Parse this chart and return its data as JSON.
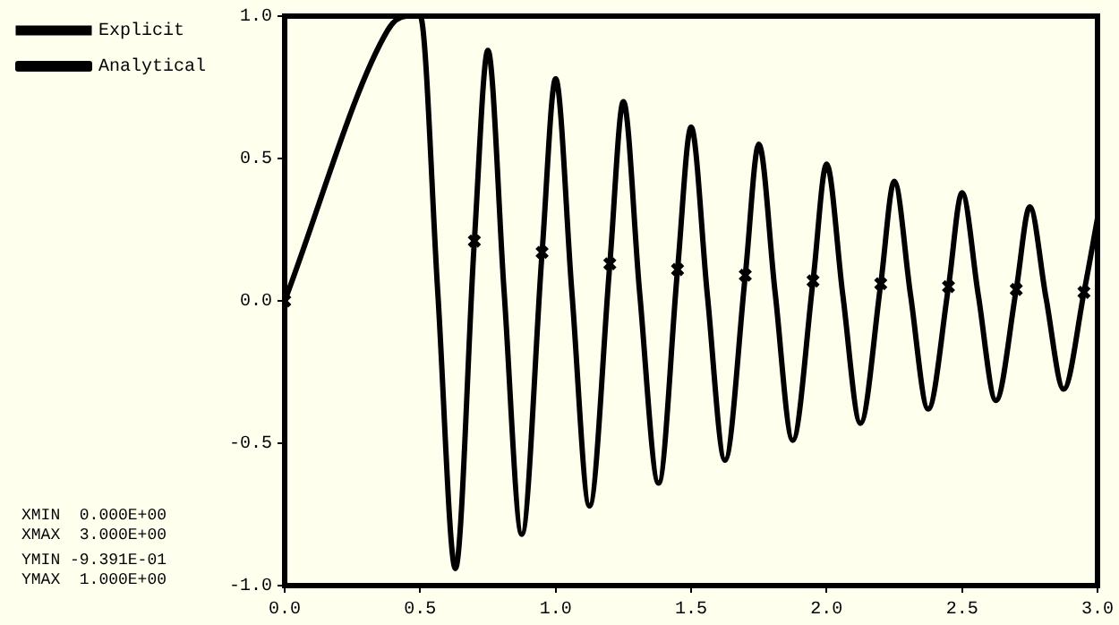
{
  "chart_data": {
    "type": "line",
    "xlim": [
      0,
      3
    ],
    "ylim": [
      -1,
      1
    ],
    "xticks": [
      {
        "value": 0,
        "label": "0.0"
      },
      {
        "value": 0.5,
        "label": "0.5"
      },
      {
        "value": 1,
        "label": "1.0"
      },
      {
        "value": 1.5,
        "label": "1.5"
      },
      {
        "value": 2,
        "label": "2.0"
      },
      {
        "value": 2.5,
        "label": "2.5"
      },
      {
        "value": 3,
        "label": "3.0"
      }
    ],
    "yticks": [
      {
        "value": -1,
        "label": "-1.0"
      },
      {
        "value": -0.5,
        "label": "-0.5"
      },
      {
        "value": 0,
        "label": "0.0"
      },
      {
        "value": 0.5,
        "label": "0.5"
      },
      {
        "value": 1,
        "label": "1.0"
      }
    ],
    "grid": false,
    "legend": "top left",
    "line_style": "solid",
    "series": [
      {
        "name": "Explicit",
        "type": "scatter",
        "marker": "cross",
        "color": "#000000",
        "x": [
          0,
          0.7,
          0.95,
          1.2,
          1.45,
          1.7,
          1.95,
          2.2,
          2.45,
          2.7,
          2.95
        ],
        "values": [
          0,
          0.21,
          0.17,
          0.13,
          0.11,
          0.09,
          0.07,
          0.06,
          0.05,
          0.04,
          0.03
        ]
      },
      {
        "name": "Analytical",
        "marker": "none",
        "color": "#000000",
        "x": [
          0,
          0.38,
          0.45,
          0.5,
          0.565,
          0.63,
          0.7,
          0.75,
          0.81,
          0.875,
          0.95,
          1.0,
          1.06,
          1.125,
          1.2,
          1.25,
          1.31,
          1.38,
          1.45,
          1.5,
          1.56,
          1.625,
          1.7,
          1.75,
          1.81,
          1.875,
          1.95,
          2.0,
          2.06,
          2.125,
          2.2,
          2.25,
          2.31,
          2.375,
          2.45,
          2.5,
          2.56,
          2.625,
          2.7,
          2.75,
          2.81,
          2.875,
          2.95,
          3.0
        ],
        "values": [
          0,
          0.95,
          1.0,
          1.0,
          0.03,
          -0.94,
          0.21,
          0.88,
          0.03,
          -0.82,
          0.17,
          0.78,
          0.03,
          -0.72,
          0.13,
          0.7,
          0.03,
          -0.64,
          0.11,
          0.61,
          0.02,
          -0.56,
          0.09,
          0.55,
          0.03,
          -0.49,
          0.07,
          0.48,
          0.02,
          -0.43,
          0.06,
          0.42,
          0.02,
          -0.38,
          0.05,
          0.38,
          0.02,
          -0.35,
          0.04,
          0.33,
          0.01,
          -0.31,
          0.03,
          0.29
        ]
      }
    ],
    "annotations": [
      "XMIN  0.000E+00",
      "XMAX  3.000E+00",
      "YMIN -9.391E-01",
      "YMAX  1.000E+00"
    ]
  }
}
